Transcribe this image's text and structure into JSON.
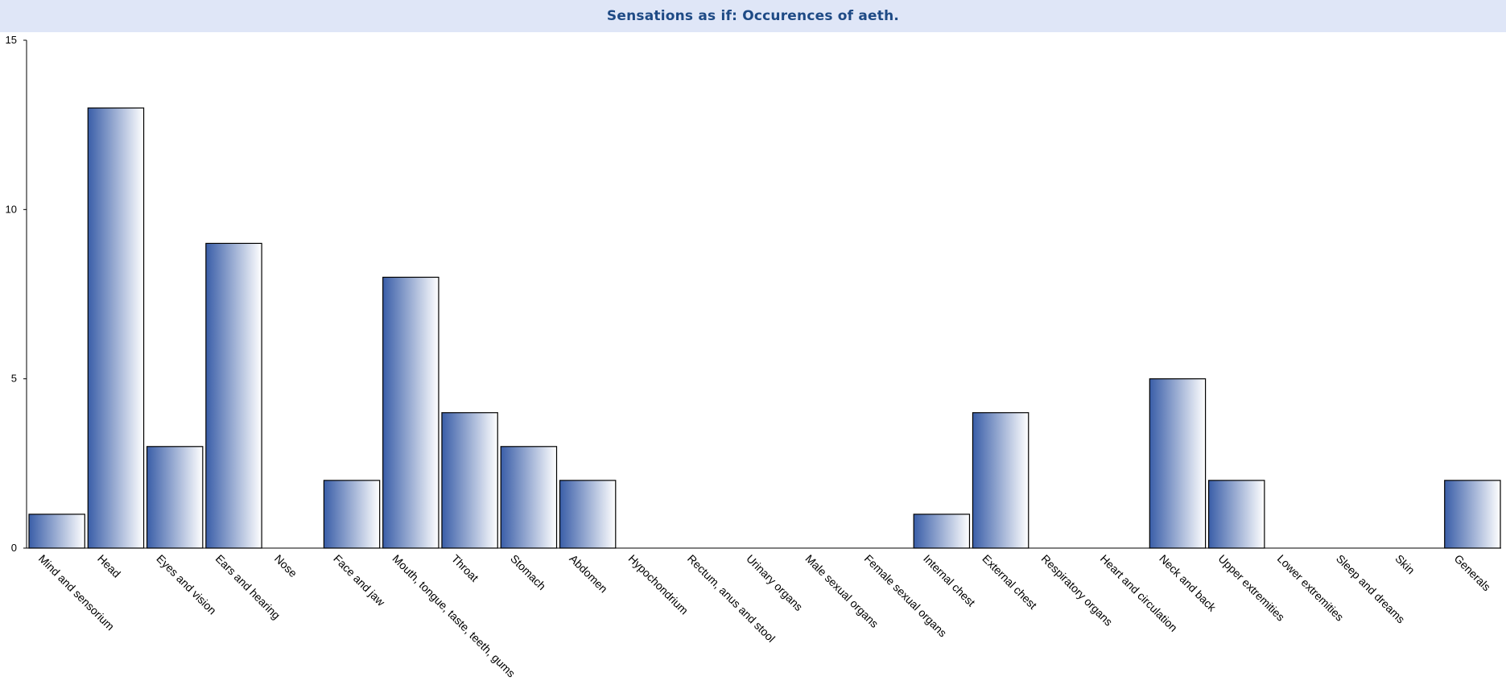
{
  "colors": {
    "title_bg": "#dfe6f7",
    "title_text": "#1e4a85",
    "bar_dark": "#3a5ea8",
    "bar_light": "#ffffff",
    "bar_stroke": "#000000"
  },
  "chart_data": {
    "type": "bar",
    "title": "Sensations as if: Occurences of aeth.",
    "xlabel": "",
    "ylabel": "",
    "ylim": [
      0,
      15
    ],
    "yticks": [
      0,
      5,
      10,
      15
    ],
    "grid": false,
    "legend": "none",
    "categories": [
      "Mind and sensorium",
      "Head",
      "Eyes and vision",
      "Ears and hearing",
      "Nose",
      "Face and jaw",
      "Mouth, tongue, taste, teeth, gums",
      "Throat",
      "Stomach",
      "Abdomen",
      "Hypochondrium",
      "Rectum, anus and stool",
      "Urinary organs",
      "Male sexual organs",
      "Female sexual organs",
      "Internal chest",
      "External chest",
      "Respiratory organs",
      "Heart and circulation",
      "Neck and back",
      "Upper extremities",
      "Lower extremities",
      "Sleep and dreams",
      "Skin",
      "Generals"
    ],
    "values": [
      1,
      13,
      3,
      9,
      0,
      2,
      8,
      4,
      3,
      2,
      0,
      0,
      0,
      0,
      0,
      1,
      4,
      0,
      0,
      5,
      2,
      0,
      0,
      0,
      2
    ]
  }
}
